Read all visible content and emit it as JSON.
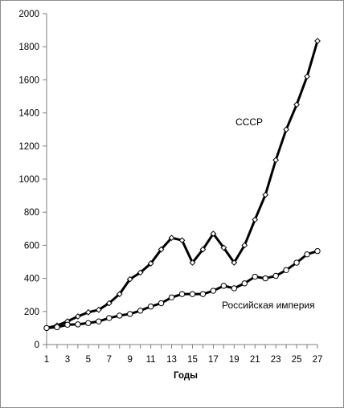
{
  "chart_data": {
    "type": "line",
    "title": "",
    "xlabel": "Годы",
    "ylabel": "",
    "xlim": [
      1,
      27
    ],
    "ylim": [
      0,
      2000
    ],
    "x_ticks": [
      1,
      3,
      5,
      7,
      9,
      11,
      13,
      15,
      17,
      19,
      21,
      23,
      25,
      27
    ],
    "y_ticks": [
      0,
      200,
      400,
      600,
      800,
      1000,
      1200,
      1400,
      1600,
      1800,
      2000
    ],
    "grid": false,
    "legend": "none",
    "x": [
      1,
      2,
      3,
      4,
      5,
      6,
      7,
      8,
      9,
      10,
      11,
      12,
      13,
      14,
      15,
      16,
      17,
      18,
      19,
      20,
      21,
      22,
      23,
      24,
      25,
      26,
      27
    ],
    "series": [
      {
        "name": "СССР",
        "marker": "diamond",
        "color": "#000000",
        "values": [
          100,
          115,
          140,
          170,
          195,
          210,
          250,
          305,
          395,
          435,
          490,
          575,
          645,
          630,
          495,
          575,
          670,
          585,
          495,
          600,
          755,
          905,
          1115,
          1300,
          1450,
          1620,
          1835
        ]
      },
      {
        "name": "Российская империя",
        "marker": "circle",
        "color": "#000000",
        "values": [
          100,
          105,
          120,
          122,
          130,
          140,
          160,
          175,
          185,
          205,
          230,
          250,
          285,
          305,
          305,
          305,
          325,
          355,
          340,
          370,
          410,
          400,
          415,
          450,
          495,
          545,
          565
        ]
      }
    ]
  }
}
